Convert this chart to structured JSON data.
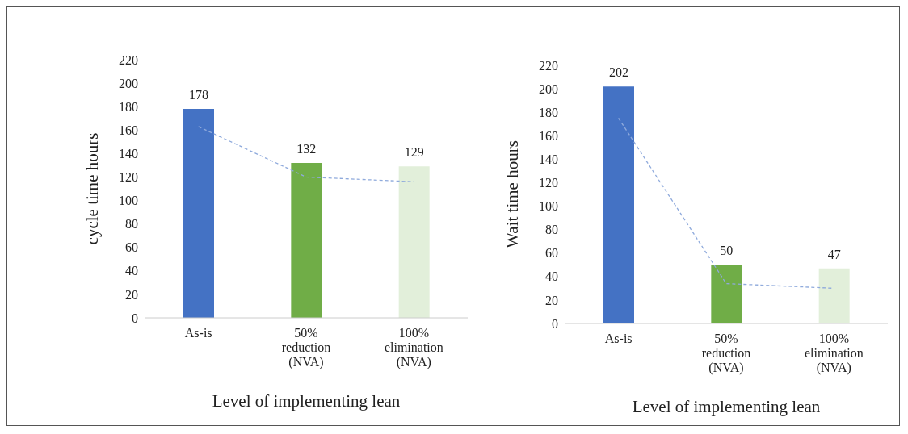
{
  "chart_data": [
    {
      "type": "bar",
      "xlabel": "Level of implementing lean",
      "ylabel": "cycle time hours",
      "categories": [
        "As-is",
        "50% reduction (NVA)",
        "100% elimination (NVA)"
      ],
      "ylim": [
        0,
        220
      ],
      "yticks": [
        0,
        20,
        40,
        60,
        80,
        100,
        120,
        140,
        160,
        180,
        200,
        220
      ],
      "grid": false,
      "legend": false,
      "series": [
        {
          "colors": [
            "#4472c4",
            "#70ad47",
            "#e2efda"
          ],
          "values": [
            178,
            132,
            129
          ],
          "value_labels": [
            "178",
            "132",
            "129"
          ]
        },
        {
          "type": "line",
          "color": "#8faadc",
          "values": [
            163,
            120,
            116
          ],
          "line_style": "dashed",
          "marker": "none"
        }
      ]
    },
    {
      "type": "bar",
      "xlabel": "Level of implementing lean",
      "ylabel": "Wait time hours",
      "categories": [
        "As-is",
        "50% reduction (NVA)",
        "100% elimination (NVA)"
      ],
      "ylim": [
        0,
        220
      ],
      "yticks": [
        0,
        20,
        40,
        60,
        80,
        100,
        120,
        140,
        160,
        180,
        200,
        220
      ],
      "grid": false,
      "legend": false,
      "series": [
        {
          "colors": [
            "#4472c4",
            "#70ad47",
            "#e2efda"
          ],
          "values": [
            202,
            50,
            47
          ],
          "value_labels": [
            "202",
            "50",
            "47"
          ]
        },
        {
          "type": "line",
          "color": "#8faadc",
          "values": [
            175,
            34,
            30
          ],
          "line_style": "dashed",
          "marker": "none"
        }
      ]
    }
  ]
}
